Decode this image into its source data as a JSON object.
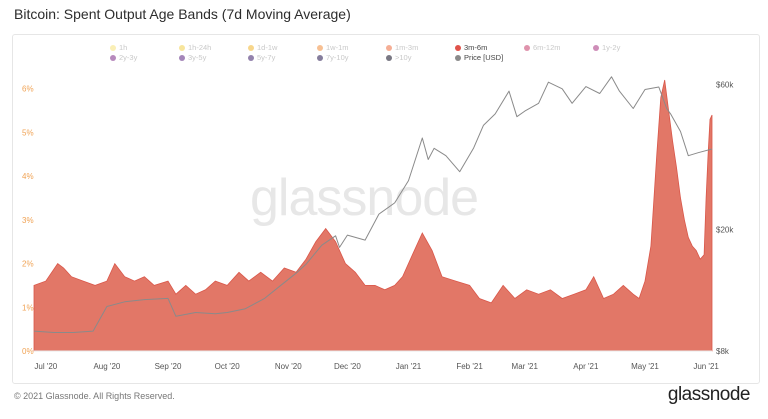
{
  "title": "Bitcoin: Spent Output Age Bands (7d Moving Average)",
  "footer": {
    "copyright": "© 2021 Glassnode. All Rights Reserved.",
    "brand": "glassnode"
  },
  "watermark": "glassnode",
  "colors": {
    "area": "#e0705f",
    "area_line": "#d9574a",
    "price": "#8a8a8a",
    "left_axis": "#f0a355"
  },
  "chart_data": {
    "type": "area",
    "x_ticks": [
      "Jul '20",
      "Aug '20",
      "Sep '20",
      "Oct '20",
      "Nov '20",
      "Dec '20",
      "Jan '21",
      "Feb '21",
      "Mar '21",
      "Apr '21",
      "May '21",
      "Jun '21"
    ],
    "y_left_ticks": [
      "0%",
      "1%",
      "2%",
      "3%",
      "4%",
      "5%",
      "6%"
    ],
    "y_left_range": [
      0,
      6.2
    ],
    "y_right_ticks": [
      "$8k",
      "$20k",
      "$60k"
    ],
    "y_right_scale": "log",
    "y_right_range": [
      8000,
      62000
    ],
    "legend": [
      {
        "name": "1h",
        "color": "#f6e27a",
        "active": false
      },
      {
        "name": "1h-24h",
        "color": "#f1d04a",
        "active": false
      },
      {
        "name": "1d-1w",
        "color": "#f1b52e",
        "active": false
      },
      {
        "name": "1w-1m",
        "color": "#f08d3a",
        "active": false
      },
      {
        "name": "1m-3m",
        "color": "#ec6b3e",
        "active": false
      },
      {
        "name": "3m-6m",
        "color": "#e0524a",
        "active": true
      },
      {
        "name": "6m-12m",
        "color": "#c53a68",
        "active": false
      },
      {
        "name": "1y-2y",
        "color": "#a52f7d",
        "active": false
      },
      {
        "name": "2y-3y",
        "color": "#7b2a86",
        "active": false
      },
      {
        "name": "3y-5y",
        "color": "#59237f",
        "active": false
      },
      {
        "name": "5y-7y",
        "color": "#3b1b68",
        "active": false
      },
      {
        "name": "7y-10y",
        "color": "#21124a",
        "active": false
      },
      {
        "name": ">10y",
        "color": "#0b0a1e",
        "active": false
      },
      {
        "name": "Price [USD]",
        "color": "#8a8a8a",
        "active": true
      }
    ],
    "series": [
      {
        "name": "3m-6m",
        "x": [
          "2020-06-25",
          "2020-07-01",
          "2020-07-07",
          "2020-07-10",
          "2020-07-14",
          "2020-07-20",
          "2020-07-26",
          "2020-08-01",
          "2020-08-05",
          "2020-08-10",
          "2020-08-15",
          "2020-08-20",
          "2020-08-25",
          "2020-09-01",
          "2020-09-05",
          "2020-09-10",
          "2020-09-15",
          "2020-09-20",
          "2020-09-25",
          "2020-10-01",
          "2020-10-07",
          "2020-10-12",
          "2020-10-18",
          "2020-10-24",
          "2020-10-30",
          "2020-11-05",
          "2020-11-10",
          "2020-11-15",
          "2020-11-20",
          "2020-11-25",
          "2020-11-30",
          "2020-12-05",
          "2020-12-10",
          "2020-12-15",
          "2020-12-20",
          "2020-12-25",
          "2020-12-29",
          "2021-01-03",
          "2021-01-08",
          "2021-01-13",
          "2021-01-18",
          "2021-01-25",
          "2021-02-01",
          "2021-02-06",
          "2021-02-12",
          "2021-02-18",
          "2021-02-24",
          "2021-03-02",
          "2021-03-08",
          "2021-03-14",
          "2021-03-20",
          "2021-03-26",
          "2021-04-01",
          "2021-04-05",
          "2021-04-10",
          "2021-04-15",
          "2021-04-20",
          "2021-04-25",
          "2021-04-28",
          "2021-05-01",
          "2021-05-04",
          "2021-05-07",
          "2021-05-09",
          "2021-05-11",
          "2021-05-13",
          "2021-05-15",
          "2021-05-17",
          "2021-05-19",
          "2021-05-21",
          "2021-05-23",
          "2021-05-25",
          "2021-05-27",
          "2021-05-29",
          "2021-05-31",
          "2021-06-01",
          "2021-06-02",
          "2021-06-03",
          "2021-06-04"
        ],
        "values": [
          1.5,
          1.6,
          2.0,
          1.9,
          1.7,
          1.6,
          1.5,
          1.6,
          2.0,
          1.7,
          1.6,
          1.7,
          1.5,
          1.6,
          1.3,
          1.5,
          1.3,
          1.4,
          1.6,
          1.5,
          1.8,
          1.6,
          1.8,
          1.6,
          1.9,
          1.8,
          2.1,
          2.5,
          2.8,
          2.5,
          2.0,
          1.8,
          1.5,
          1.5,
          1.4,
          1.5,
          1.7,
          2.2,
          2.7,
          2.3,
          1.7,
          1.6,
          1.5,
          1.2,
          1.1,
          1.5,
          1.2,
          1.4,
          1.3,
          1.4,
          1.2,
          1.3,
          1.4,
          1.7,
          1.2,
          1.3,
          1.5,
          1.3,
          1.2,
          1.6,
          2.4,
          4.5,
          5.8,
          6.2,
          5.5,
          4.8,
          4.2,
          3.5,
          3.0,
          2.6,
          2.4,
          2.3,
          2.1,
          2.2,
          3.5,
          4.5,
          5.3,
          5.4
        ]
      },
      {
        "name": "Price [USD]",
        "x": [
          "2020-06-25",
          "2020-07-05",
          "2020-07-15",
          "2020-07-25",
          "2020-08-01",
          "2020-08-10",
          "2020-08-20",
          "2020-09-01",
          "2020-09-05",
          "2020-09-15",
          "2020-09-25",
          "2020-10-01",
          "2020-10-10",
          "2020-10-20",
          "2020-10-28",
          "2020-11-05",
          "2020-11-10",
          "2020-11-18",
          "2020-11-25",
          "2020-11-27",
          "2020-12-01",
          "2020-12-10",
          "2020-12-17",
          "2020-12-25",
          "2021-01-01",
          "2021-01-08",
          "2021-01-11",
          "2021-01-14",
          "2021-01-20",
          "2021-01-27",
          "2021-02-03",
          "2021-02-08",
          "2021-02-14",
          "2021-02-21",
          "2021-02-25",
          "2021-03-01",
          "2021-03-08",
          "2021-03-13",
          "2021-03-20",
          "2021-03-25",
          "2021-04-01",
          "2021-04-08",
          "2021-04-14",
          "2021-04-18",
          "2021-04-25",
          "2021-05-01",
          "2021-05-08",
          "2021-05-12",
          "2021-05-14",
          "2021-05-19",
          "2021-05-23",
          "2021-05-28",
          "2021-06-04"
        ],
        "values": [
          9300,
          9200,
          9200,
          9300,
          11200,
          11600,
          11800,
          11900,
          10400,
          10700,
          10600,
          10700,
          11000,
          11900,
          13100,
          14400,
          15400,
          17800,
          19100,
          17500,
          19200,
          18500,
          22500,
          24500,
          29000,
          40000,
          34000,
          37000,
          35000,
          31000,
          37000,
          44000,
          48000,
          57000,
          47000,
          49000,
          52000,
          61000,
          58000,
          52000,
          59000,
          56000,
          63500,
          57000,
          50000,
          57700,
          58800,
          50000,
          48000,
          42000,
          35000,
          35800,
          36800
        ]
      }
    ]
  }
}
